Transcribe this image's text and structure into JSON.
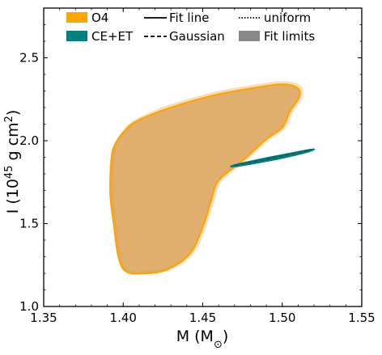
{
  "chart_data": {
    "type": "area",
    "xlabel": "M (M",
    "xlabel_symbol": "⊙",
    "xlabel_close": ")",
    "ylabel_main": "I (10",
    "ylabel_exp": "45",
    "ylabel_mid": " g cm",
    "ylabel_sq": "2",
    "ylabel_close": ")",
    "xlim": [
      1.35,
      1.55
    ],
    "ylim": [
      1.0,
      2.8
    ],
    "xticks": [
      1.35,
      1.4,
      1.45,
      1.5,
      1.55
    ],
    "xtick_labels": [
      "1.35",
      "1.40",
      "1.45",
      "1.50",
      "1.55"
    ],
    "yticks": [
      1.0,
      1.5,
      2.0,
      2.5
    ],
    "ytick_labels": [
      "1.0",
      "1.5",
      "2.0",
      "2.5"
    ],
    "grid": false,
    "legend_position": "top",
    "legend": [
      {
        "label": "O4",
        "kind": "patch",
        "color": "#ffa500"
      },
      {
        "label": "CE+ET",
        "kind": "patch",
        "color": "#008080"
      },
      {
        "label": "Fit line",
        "kind": "line",
        "style": "solid"
      },
      {
        "label": "Gaussian",
        "kind": "line",
        "style": "dashed"
      },
      {
        "label": "uniform",
        "kind": "line",
        "style": "dotted"
      },
      {
        "label": "Fit limits",
        "kind": "patch",
        "color": "#888888"
      }
    ],
    "series": [
      {
        "name": "O4",
        "color": "#ffa500",
        "fill": "#dba054",
        "points": [
          [
            1.395,
            1.98
          ],
          [
            1.401,
            2.06
          ],
          [
            1.409,
            2.12
          ],
          [
            1.43,
            2.2
          ],
          [
            1.46,
            2.28
          ],
          [
            1.49,
            2.33
          ],
          [
            1.5,
            2.34
          ],
          [
            1.507,
            2.33
          ],
          [
            1.511,
            2.3
          ],
          [
            1.51,
            2.25
          ],
          [
            1.505,
            2.18
          ],
          [
            1.5,
            2.08
          ],
          [
            1.49,
            2.01
          ],
          [
            1.475,
            1.88
          ],
          [
            1.46,
            1.76
          ],
          [
            1.455,
            1.63
          ],
          [
            1.45,
            1.48
          ],
          [
            1.442,
            1.32
          ],
          [
            1.428,
            1.225
          ],
          [
            1.415,
            1.2
          ],
          [
            1.402,
            1.21
          ],
          [
            1.397,
            1.3
          ],
          [
            1.394,
            1.5
          ],
          [
            1.392,
            1.66
          ],
          [
            1.392,
            1.8
          ],
          [
            1.393,
            1.92
          ]
        ]
      },
      {
        "name": "O4 fit limits",
        "color": "#f3dec0",
        "points": [
          [
            1.396,
            1.99
          ],
          [
            1.402,
            2.07
          ],
          [
            1.41,
            2.13
          ],
          [
            1.43,
            2.21
          ],
          [
            1.46,
            2.29
          ],
          [
            1.49,
            2.34
          ],
          [
            1.5,
            2.35
          ],
          [
            1.508,
            2.34
          ],
          [
            1.512,
            2.31
          ],
          [
            1.511,
            2.25
          ],
          [
            1.506,
            2.18
          ],
          [
            1.501,
            2.08
          ],
          [
            1.491,
            2.01
          ],
          [
            1.476,
            1.88
          ],
          [
            1.461,
            1.76
          ],
          [
            1.456,
            1.63
          ],
          [
            1.451,
            1.48
          ],
          [
            1.443,
            1.32
          ],
          [
            1.429,
            1.23
          ],
          [
            1.415,
            1.205
          ],
          [
            1.402,
            1.215
          ],
          [
            1.398,
            1.3
          ],
          [
            1.395,
            1.5
          ],
          [
            1.393,
            1.66
          ],
          [
            1.393,
            1.8
          ],
          [
            1.394,
            1.92
          ]
        ]
      },
      {
        "name": "CE+ET",
        "color": "#008080",
        "fill": "#0a7a7a",
        "points": [
          [
            1.47,
            1.843
          ],
          [
            1.49,
            1.875
          ],
          [
            1.505,
            1.905
          ],
          [
            1.518,
            1.937
          ],
          [
            1.519,
            1.95
          ],
          [
            1.505,
            1.925
          ],
          [
            1.49,
            1.897
          ],
          [
            1.47,
            1.855
          ]
        ],
        "fit_line": [
          [
            1.47,
            1.848
          ],
          [
            1.518,
            1.944
          ]
        ]
      }
    ]
  }
}
